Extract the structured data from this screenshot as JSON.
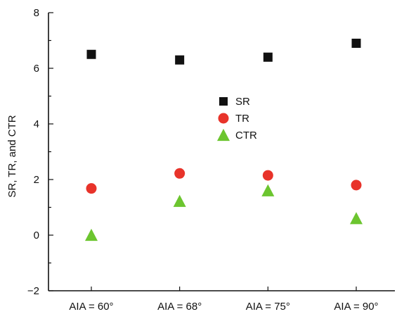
{
  "chart_data": {
    "type": "scatter",
    "title": "",
    "xlabel": "",
    "ylabel": "SR, TR, and CTR",
    "categories": [
      "AIA = 60°",
      "AIA = 68°",
      "AIA = 75°",
      "AIA = 90°"
    ],
    "ylim": [
      -2,
      8
    ],
    "yticks": [
      -2,
      0,
      2,
      4,
      6,
      8
    ],
    "yticks_labels": [
      "−2",
      "0",
      "2",
      "4",
      "6",
      "8"
    ],
    "grid": false,
    "legend_position": "center",
    "series": [
      {
        "name": "SR",
        "marker": "square",
        "color": "#111111",
        "values": [
          6.5,
          6.3,
          6.4,
          6.9
        ]
      },
      {
        "name": "TR",
        "marker": "circle",
        "color": "#e8332a",
        "values": [
          1.68,
          2.22,
          2.15,
          1.8
        ]
      },
      {
        "name": "CTR",
        "marker": "triangle",
        "color": "#6cc52f",
        "values": [
          0.0,
          1.22,
          1.6,
          0.6
        ]
      }
    ]
  }
}
